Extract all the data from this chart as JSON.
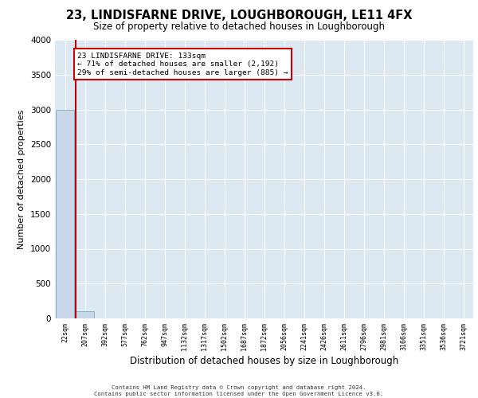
{
  "title": "23, LINDISFARNE DRIVE, LOUGHBOROUGH, LE11 4FX",
  "subtitle": "Size of property relative to detached houses in Loughborough",
  "xlabel": "Distribution of detached houses by size in Loughborough",
  "ylabel": "Number of detached properties",
  "bar_labels": [
    "22sqm",
    "207sqm",
    "392sqm",
    "577sqm",
    "762sqm",
    "947sqm",
    "1132sqm",
    "1317sqm",
    "1502sqm",
    "1687sqm",
    "1872sqm",
    "2056sqm",
    "2241sqm",
    "2426sqm",
    "2611sqm",
    "2796sqm",
    "2981sqm",
    "3166sqm",
    "3351sqm",
    "3536sqm",
    "3721sqm"
  ],
  "bar_values": [
    2990,
    100,
    4,
    2,
    1,
    1,
    1,
    0,
    0,
    0,
    0,
    0,
    0,
    0,
    0,
    0,
    0,
    0,
    0,
    0,
    0
  ],
  "bar_color": "#c8d8e8",
  "bar_edge_color": "#7aaac0",
  "vline_x_index": 0.55,
  "vline_color": "#cc0000",
  "annotation_text": "23 LINDISFARNE DRIVE: 133sqm\n← 71% of detached houses are smaller (2,192)\n29% of semi-detached houses are larger (885) →",
  "annotation_box_color": "#ffffff",
  "annotation_box_edge_color": "#cc0000",
  "ylim": [
    0,
    4000
  ],
  "yticks": [
    0,
    500,
    1000,
    1500,
    2000,
    2500,
    3000,
    3500,
    4000
  ],
  "background_color": "#dce8f2",
  "grid_color": "#ffffff",
  "footer_line1": "Contains HM Land Registry data © Crown copyright and database right 2024.",
  "footer_line2": "Contains public sector information licensed under the Open Government Licence v3.0."
}
